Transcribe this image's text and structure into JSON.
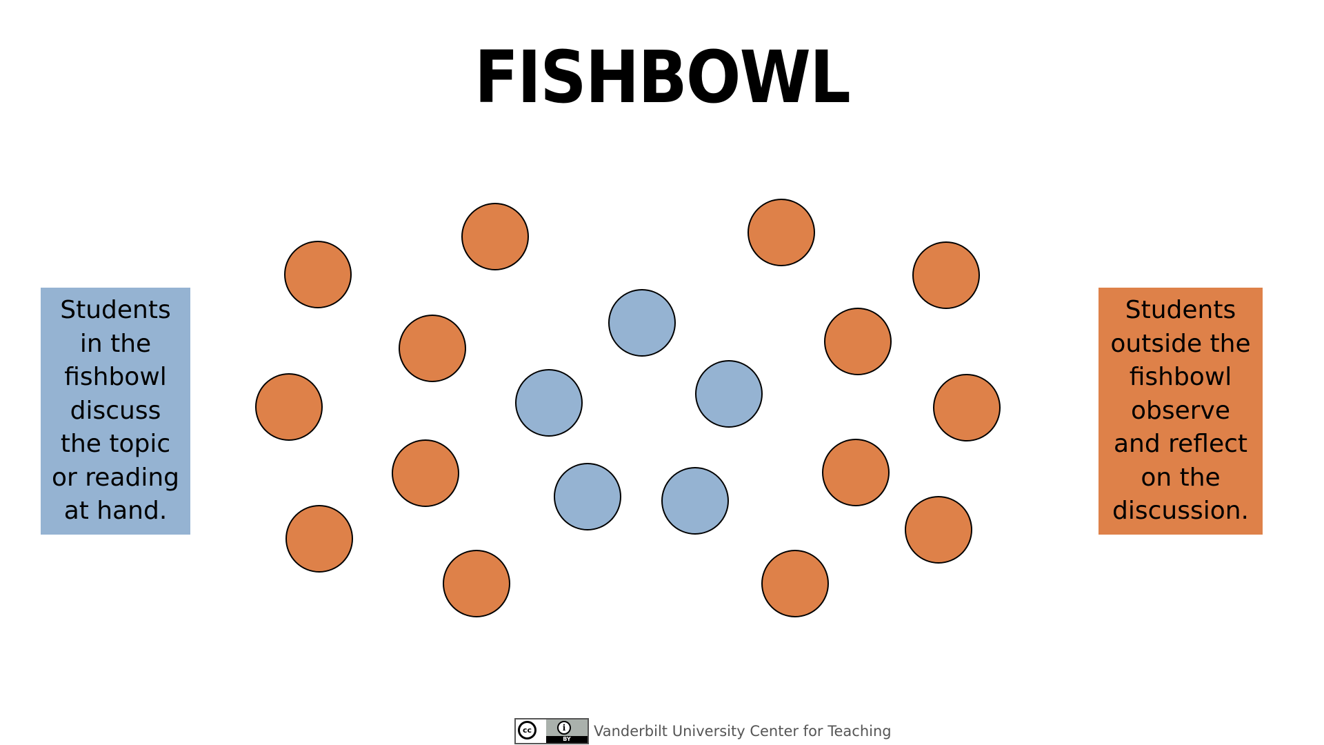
{
  "slide": {
    "title": "FISHBOWL"
  },
  "notes": {
    "inside": {
      "text": "Students\nin the\nfishbowl\ndiscuss\nthe topic\nor reading\nat hand.",
      "color": "#95b3d2"
    },
    "outside": {
      "text": "Students\noutside the\nfishbowl\nobserve\nand reflect\non the\ndiscussion.",
      "color": "#de8149"
    }
  },
  "colors": {
    "inner_seat": "#95b3d2",
    "outer_seat": "#de8149",
    "seat_outline": "#000000"
  },
  "icons": {
    "license": "cc-by-license-icon"
  },
  "footer": {
    "cc_label": "cc",
    "by_label": "BY",
    "credit": "Vanderbilt University Center for Teaching"
  }
}
